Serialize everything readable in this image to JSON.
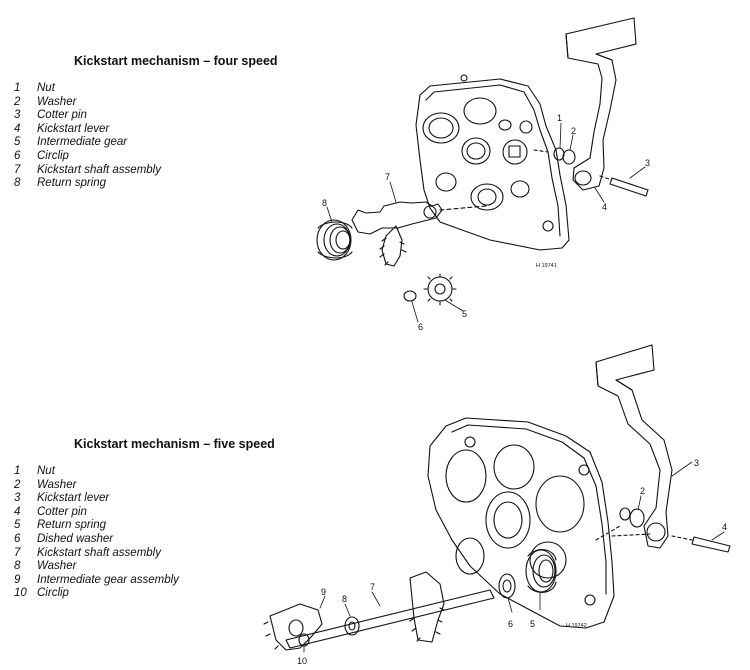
{
  "four_speed": {
    "title": "Kickstart mechanism – four speed",
    "items": [
      {
        "num": "1",
        "label": "Nut"
      },
      {
        "num": "2",
        "label": "Washer"
      },
      {
        "num": "3",
        "label": "Cotter pin"
      },
      {
        "num": "4",
        "label": "Kickstart lever"
      },
      {
        "num": "5",
        "label": "Intermediate gear"
      },
      {
        "num": "6",
        "label": "Circlip"
      },
      {
        "num": "7",
        "label": "Kickstart shaft assembly"
      },
      {
        "num": "8",
        "label": "Return spring"
      }
    ],
    "callouts": {
      "c1": "1",
      "c2": "2",
      "c3": "3",
      "c4": "4",
      "c5": "5",
      "c6": "6",
      "c7": "7",
      "c8": "8"
    },
    "ref": "H 19741"
  },
  "five_speed": {
    "title": "Kickstart mechanism – five speed",
    "items": [
      {
        "num": "1",
        "label": "Nut"
      },
      {
        "num": "2",
        "label": "Washer"
      },
      {
        "num": "3",
        "label": "Kickstart lever"
      },
      {
        "num": "4",
        "label": "Cotter pin"
      },
      {
        "num": "5",
        "label": "Return spring"
      },
      {
        "num": "6",
        "label": "Dished washer"
      },
      {
        "num": "7",
        "label": "Kickstart shaft assembly"
      },
      {
        "num": "8",
        "label": "Washer"
      },
      {
        "num": "9",
        "label": "Intermediate gear assembly"
      },
      {
        "num": "10",
        "label": "Circlip"
      }
    ],
    "callouts": {
      "c2": "2",
      "c3": "3",
      "c4": "4",
      "c5": "5",
      "c6": "6",
      "c7": "7",
      "c8": "8",
      "c9": "9",
      "c10": "10"
    },
    "ref": "H 19742"
  }
}
